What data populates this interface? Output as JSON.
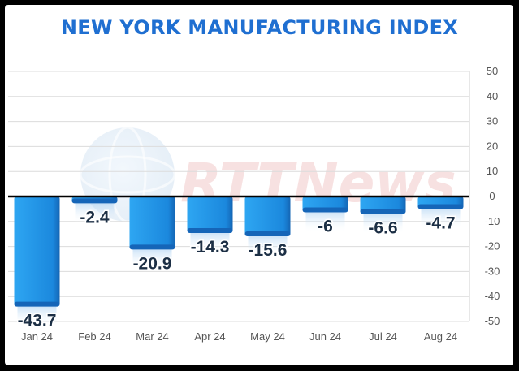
{
  "chart_data": {
    "type": "bar",
    "title": "NEW YORK MANUFACTURING INDEX",
    "xlabel": "",
    "ylabel": "",
    "categories": [
      "Jan 24",
      "Feb 24",
      "Mar 24",
      "Apr 24",
      "May 24",
      "Jun 24",
      "Jul 24",
      "Aug 24"
    ],
    "values": [
      -43.7,
      -2.4,
      -20.9,
      -14.3,
      -15.6,
      -6,
      -6.6,
      -4.7
    ],
    "data_labels": [
      "-43.7",
      "-2.4",
      "-20.9",
      "-14.3",
      "-15.6",
      "-6",
      "-6.6",
      "-4.7"
    ],
    "ylim": [
      -50,
      50
    ],
    "yticks": [
      50,
      40,
      30,
      20,
      10,
      0,
      -10,
      -20,
      -30,
      -40,
      -50
    ],
    "grid": true,
    "y_axis_side": "right",
    "colors": {
      "bar": "#1f8fe0",
      "bar_dark": "#1565b8",
      "title": "#1f6fd1",
      "label": "#1c2f45",
      "grid": "#dcdcdc"
    }
  },
  "watermark": {
    "text": "RTTNews"
  }
}
